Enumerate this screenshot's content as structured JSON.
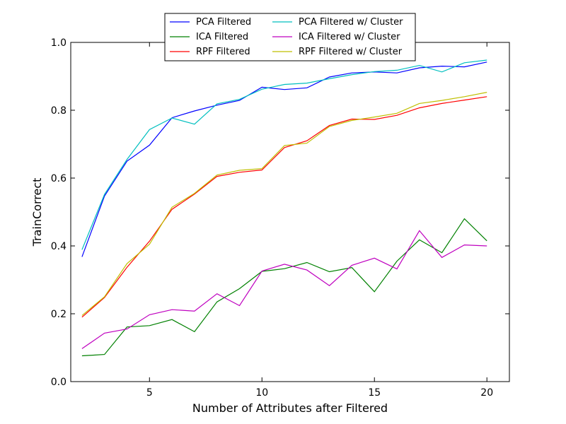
{
  "chart_data": {
    "type": "line",
    "title": "",
    "xlabel": "Number of Attributes after Filtered",
    "ylabel": "TrainCorrect",
    "xlim": [
      1.5,
      21
    ],
    "ylim": [
      0.0,
      1.0
    ],
    "xticks": [
      5,
      10,
      15,
      20
    ],
    "xtick_labels": [
      "5",
      "10",
      "15",
      "20"
    ],
    "yticks": [
      0.0,
      0.2,
      0.4,
      0.6,
      0.8,
      1.0
    ],
    "ytick_labels": [
      "0.0",
      "0.2",
      "0.4",
      "0.6",
      "0.8",
      "1.0"
    ],
    "grid": false,
    "legend_position": "top-center",
    "x": [
      2,
      3,
      4,
      5,
      6,
      7,
      8,
      9,
      10,
      11,
      12,
      13,
      14,
      15,
      16,
      17,
      18,
      19,
      20
    ],
    "series": [
      {
        "name": "PCA Filtered",
        "color": "#0000ff",
        "values": [
          0.368,
          0.547,
          0.65,
          0.697,
          0.778,
          0.798,
          0.815,
          0.829,
          0.868,
          0.861,
          0.866,
          0.898,
          0.91,
          0.913,
          0.91,
          0.925,
          0.93,
          0.928,
          0.942
        ]
      },
      {
        "name": "ICA Filtered",
        "color": "#008000",
        "values": [
          0.076,
          0.08,
          0.161,
          0.165,
          0.183,
          0.147,
          0.235,
          0.274,
          0.325,
          0.333,
          0.351,
          0.324,
          0.336,
          0.265,
          0.355,
          0.418,
          0.38,
          0.48,
          0.415
        ]
      },
      {
        "name": "RPF Filtered",
        "color": "#ff0000",
        "values": [
          0.19,
          0.248,
          0.337,
          0.414,
          0.508,
          0.553,
          0.605,
          0.617,
          0.624,
          0.69,
          0.71,
          0.755,
          0.774,
          0.773,
          0.785,
          0.807,
          0.82,
          0.83,
          0.84
        ]
      },
      {
        "name": "PCA Filtered w/ Cluster",
        "color": "#00bfbf",
        "values": [
          0.389,
          0.552,
          0.655,
          0.743,
          0.777,
          0.759,
          0.819,
          0.832,
          0.862,
          0.876,
          0.88,
          0.893,
          0.905,
          0.914,
          0.918,
          0.932,
          0.913,
          0.94,
          0.948
        ]
      },
      {
        "name": "ICA Filtered w/ Cluster",
        "color": "#bf00bf",
        "values": [
          0.097,
          0.143,
          0.155,
          0.197,
          0.212,
          0.208,
          0.259,
          0.224,
          0.326,
          0.346,
          0.329,
          0.283,
          0.343,
          0.364,
          0.332,
          0.445,
          0.366,
          0.403,
          0.4
        ]
      },
      {
        "name": "RPF Filtered w/ Cluster",
        "color": "#bfbf00",
        "values": [
          0.195,
          0.25,
          0.348,
          0.405,
          0.514,
          0.555,
          0.609,
          0.623,
          0.628,
          0.696,
          0.703,
          0.752,
          0.77,
          0.78,
          0.791,
          0.82,
          0.829,
          0.84,
          0.853
        ]
      }
    ]
  }
}
